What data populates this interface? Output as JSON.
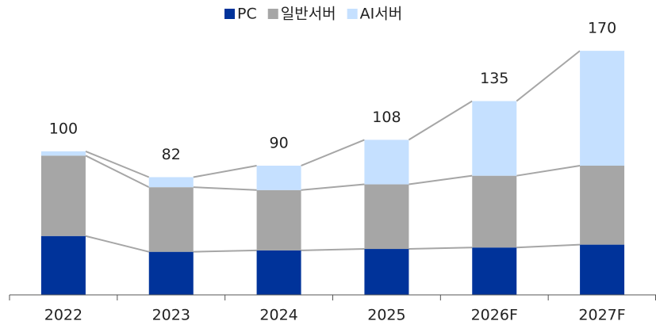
{
  "chart_data": {
    "type": "stacked_bar",
    "categories": [
      "2022",
      "2023",
      "2024",
      "2025",
      "2026F",
      "2027F"
    ],
    "series": [
      {
        "name": "PC",
        "color": "#00339a",
        "values": [
          41,
          30,
          31,
          32,
          33,
          35
        ]
      },
      {
        "name": "일반서버",
        "color": "#a6a6a6",
        "values": [
          56,
          45,
          42,
          45,
          50,
          55
        ]
      },
      {
        "name": "AI서버",
        "color": "#c5e0ff",
        "values": [
          3,
          7,
          17,
          31,
          52,
          80
        ]
      }
    ],
    "totals": [
      100,
      82,
      90,
      108,
      135,
      170
    ],
    "ylim": [
      0,
      180
    ]
  }
}
